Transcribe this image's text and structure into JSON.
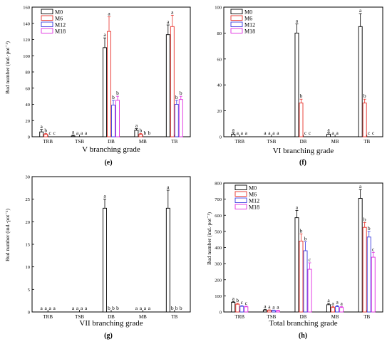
{
  "chart_data": [
    {
      "type": "bar",
      "panel_label": "(e)",
      "title": "V  branching grade",
      "ylabel": "Bud number (ind.·pot⁻¹)",
      "xlabel": "",
      "ylim": [
        0,
        160
      ],
      "yticks": [
        0,
        20,
        40,
        60,
        80,
        100,
        120,
        140,
        160
      ],
      "grid": false,
      "legend_position": "top-left",
      "categories": [
        "TRB",
        "TSB",
        "DB",
        "MB",
        "TB"
      ],
      "series": [
        {
          "name": "M0",
          "values": [
            6,
            1,
            110,
            8,
            126
          ],
          "errors": [
            3,
            1,
            12,
            2,
            12
          ],
          "letters": [
            "a",
            "a",
            "a",
            "a",
            "a"
          ]
        },
        {
          "name": "M6",
          "values": [
            3,
            0,
            130,
            3,
            136
          ],
          "errors": [
            1,
            0,
            18,
            1,
            14
          ],
          "letters": [
            "b",
            "a",
            "a",
            "b",
            "a"
          ]
        },
        {
          "name": "M12",
          "values": [
            0,
            0,
            39,
            0,
            40
          ],
          "errors": [
            0,
            0,
            6,
            0,
            5
          ],
          "letters": [
            "c",
            "a",
            "b",
            "b",
            "b"
          ]
        },
        {
          "name": "M18",
          "values": [
            0,
            0,
            45,
            0,
            46
          ],
          "errors": [
            0,
            0,
            5,
            0,
            4
          ],
          "letters": [
            "c",
            "a",
            "b",
            "b",
            "b"
          ]
        }
      ]
    },
    {
      "type": "bar",
      "panel_label": "(f)",
      "title": "VI  branching grade",
      "ylabel": "",
      "xlabel": "",
      "ylim": [
        0,
        100
      ],
      "yticks": [
        0,
        20,
        40,
        60,
        80,
        100
      ],
      "grid": false,
      "legend_position": "top-left",
      "categories": [
        "TRB",
        "TSB",
        "DB",
        "MB",
        "TB"
      ],
      "series": [
        {
          "name": "M0",
          "values": [
            2,
            0,
            80,
            2,
            85
          ],
          "errors": [
            1,
            0,
            7,
            1,
            10
          ],
          "letters": [
            "a",
            "a",
            "a",
            "a",
            "a"
          ]
        },
        {
          "name": "M6",
          "values": [
            0,
            0,
            26,
            0,
            26
          ],
          "errors": [
            0,
            0,
            3,
            0,
            3
          ],
          "letters": [
            "a",
            "a",
            "b",
            "a",
            "b"
          ]
        },
        {
          "name": "M12",
          "values": [
            0,
            0,
            0,
            0,
            0
          ],
          "errors": [
            0,
            0,
            0,
            0,
            0
          ],
          "letters": [
            "a",
            "a",
            "c",
            "a",
            "c"
          ]
        },
        {
          "name": "M18",
          "values": [
            0,
            0,
            0,
            0,
            0
          ],
          "errors": [
            0,
            0,
            0,
            0,
            0
          ],
          "letters": [
            "a",
            "a",
            "c",
            "",
            "c"
          ]
        }
      ]
    },
    {
      "type": "bar",
      "panel_label": "(g)",
      "title": "VII  branching grade",
      "ylabel": "Bud number (ind.·pot⁻¹)",
      "xlabel": "",
      "ylim": [
        0,
        30
      ],
      "yticks": [
        0,
        5,
        10,
        15,
        20,
        25,
        30
      ],
      "grid": false,
      "legend_position": "",
      "categories": [
        "TRB",
        "TSB",
        "DB",
        "MB",
        "TB"
      ],
      "series": [
        {
          "name": "M0",
          "values": [
            0,
            0,
            23,
            0,
            23
          ],
          "errors": [
            0,
            0,
            2,
            0,
            4
          ],
          "letters": [
            "a",
            "a",
            "a",
            "a",
            "a"
          ]
        },
        {
          "name": "M6",
          "values": [
            0,
            0,
            0,
            0,
            0
          ],
          "errors": [
            0,
            0,
            0,
            0,
            0
          ],
          "letters": [
            "a",
            "a",
            "b",
            "a",
            "b"
          ]
        },
        {
          "name": "M12",
          "values": [
            0,
            0,
            0,
            0,
            0
          ],
          "errors": [
            0,
            0,
            0,
            0,
            0
          ],
          "letters": [
            "a",
            "a",
            "b",
            "a",
            "b"
          ]
        },
        {
          "name": "M18",
          "values": [
            0,
            0,
            0,
            0,
            0
          ],
          "errors": [
            0,
            0,
            0,
            0,
            0
          ],
          "letters": [
            "a",
            "a",
            "b",
            "a",
            "b"
          ]
        }
      ]
    },
    {
      "type": "bar",
      "panel_label": "(h)",
      "title": "Total  branching grade",
      "ylabel": "Bud number (ind.·pot⁻¹)",
      "xlabel": "",
      "ylim": [
        0,
        800
      ],
      "yticks": [
        0,
        100,
        200,
        300,
        400,
        500,
        600,
        700,
        800
      ],
      "grid": false,
      "legend_position": "top-left",
      "categories": [
        "TRB",
        "TSB",
        "DB",
        "MB",
        "TB"
      ],
      "series": [
        {
          "name": "M0",
          "values": [
            60,
            12,
            585,
            45,
            705
          ],
          "errors": [
            5,
            3,
            45,
            8,
            55
          ],
          "letters": [
            "a",
            "a",
            "a",
            "a",
            "a"
          ]
        },
        {
          "name": "M6",
          "values": [
            48,
            10,
            440,
            28,
            525
          ],
          "errors": [
            6,
            3,
            45,
            6,
            30
          ],
          "letters": [
            "b",
            "a",
            "b",
            "a",
            "b"
          ]
        },
        {
          "name": "M12",
          "values": [
            35,
            9,
            380,
            33,
            465
          ],
          "errors": [
            4,
            3,
            55,
            8,
            35
          ],
          "letters": [
            "c",
            "a",
            "b",
            "a",
            "b"
          ]
        },
        {
          "name": "M18",
          "values": [
            32,
            8,
            265,
            28,
            340
          ],
          "errors": [
            4,
            3,
            40,
            5,
            30
          ],
          "letters": [
            "c",
            "a",
            "c",
            "a",
            "c"
          ]
        }
      ]
    }
  ],
  "colors": {
    "M0": "#000000",
    "M6": "#e8302a",
    "M12": "#3a3ae0",
    "M18": "#e028e0"
  }
}
